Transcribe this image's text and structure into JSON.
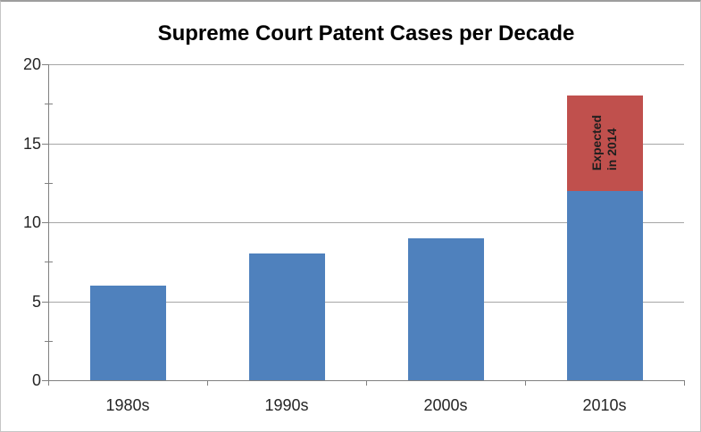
{
  "chart_data": {
    "type": "bar",
    "stacked": true,
    "title": "Supreme Court Patent Cases per Decade",
    "categories": [
      "1980s",
      "1990s",
      "2000s",
      "2010s"
    ],
    "series": [
      {
        "name": "cases-decided",
        "color": "#4F81BD",
        "values": [
          6,
          8,
          9,
          12
        ]
      },
      {
        "name": "cases-expected",
        "color": "#C0504D",
        "values": [
          0,
          0,
          0,
          6
        ]
      }
    ],
    "annotation": {
      "lines": [
        "Expected",
        "in 2014"
      ],
      "category_index": 3,
      "series_index": 1,
      "rotation_deg": -90
    },
    "xlabel": "",
    "ylabel": "",
    "ylim": [
      0,
      20
    ],
    "yticks": [
      0,
      5,
      10,
      15,
      20
    ],
    "minor_tick_step": 2.5,
    "grid": "horizontal",
    "legend": "none",
    "colors": {
      "bar_primary": "#4F81BD",
      "bar_secondary": "#C0504D",
      "axis_line": "#808080",
      "gridline": "#A6A6A6",
      "tick_label": "#262626",
      "title_text": "#000000",
      "annotation_text": "#1F1F1F",
      "background": "#FFFFFF"
    }
  }
}
